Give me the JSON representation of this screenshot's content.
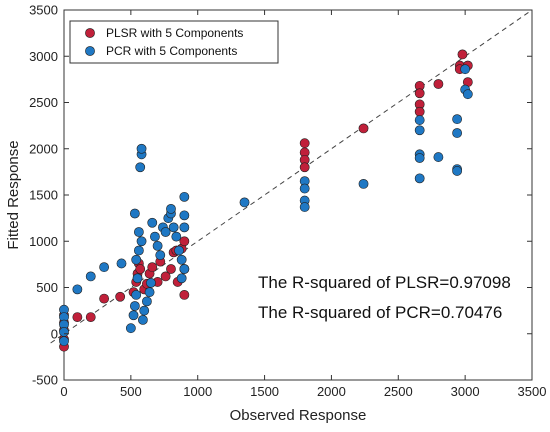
{
  "chart_data": {
    "type": "scatter",
    "xlabel": "Observed Response",
    "ylabel": "Fitted Response",
    "xlim": [
      0,
      3500
    ],
    "ylim": [
      -500,
      3500
    ],
    "xticks": [
      "0",
      "500",
      "1000",
      "1500",
      "2000",
      "2500",
      "3000",
      "3500"
    ],
    "yticks": [
      "-500",
      "0",
      "500",
      "1000",
      "1500",
      "2000",
      "2500",
      "3000",
      "3500"
    ],
    "grid": false,
    "legend_position": "top-left",
    "reference_line": "y = x (dashed)",
    "annotations": [
      "The R-squared of PLSR=0.97098",
      "The R-squared of PCR=0.70476"
    ],
    "series": [
      {
        "name": "PLSR with 5 Components",
        "color": "#c0203a",
        "points": [
          [
            0,
            -140
          ],
          [
            0,
            -60
          ],
          [
            0,
            40
          ],
          [
            0,
            120
          ],
          [
            0,
            200
          ],
          [
            100,
            180
          ],
          [
            200,
            180
          ],
          [
            300,
            380
          ],
          [
            420,
            400
          ],
          [
            520,
            450
          ],
          [
            540,
            560
          ],
          [
            550,
            650
          ],
          [
            560,
            760
          ],
          [
            570,
            700
          ],
          [
            600,
            480
          ],
          [
            620,
            540
          ],
          [
            640,
            650
          ],
          [
            660,
            720
          ],
          [
            700,
            560
          ],
          [
            720,
            780
          ],
          [
            760,
            620
          ],
          [
            800,
            700
          ],
          [
            820,
            880
          ],
          [
            840,
            900
          ],
          [
            880,
            920
          ],
          [
            900,
            1000
          ],
          [
            900,
            420
          ],
          [
            900,
            700
          ],
          [
            850,
            560
          ],
          [
            1800,
            2060
          ],
          [
            1800,
            1960
          ],
          [
            1800,
            1880
          ],
          [
            1800,
            1800
          ],
          [
            2240,
            2220
          ],
          [
            2660,
            2680
          ],
          [
            2660,
            2600
          ],
          [
            2660,
            2480
          ],
          [
            2660,
            2400
          ],
          [
            2800,
            2700
          ],
          [
            2960,
            2900
          ],
          [
            2960,
            2860
          ],
          [
            2980,
            3020
          ],
          [
            3020,
            2720
          ],
          [
            3020,
            2900
          ]
        ]
      },
      {
        "name": "PCR with 5 Components",
        "color": "#1f78c4",
        "points": [
          [
            0,
            260
          ],
          [
            0,
            180
          ],
          [
            0,
            100
          ],
          [
            0,
            20
          ],
          [
            0,
            -80
          ],
          [
            100,
            480
          ],
          [
            200,
            620
          ],
          [
            300,
            720
          ],
          [
            430,
            760
          ],
          [
            500,
            60
          ],
          [
            520,
            200
          ],
          [
            530,
            300
          ],
          [
            540,
            420
          ],
          [
            550,
            600
          ],
          [
            530,
            1300
          ],
          [
            560,
            1100
          ],
          [
            580,
            1000
          ],
          [
            560,
            900
          ],
          [
            540,
            800
          ],
          [
            570,
            1800
          ],
          [
            580,
            1940
          ],
          [
            580,
            2000
          ],
          [
            590,
            150
          ],
          [
            600,
            250
          ],
          [
            620,
            350
          ],
          [
            640,
            450
          ],
          [
            650,
            550
          ],
          [
            660,
            1200
          ],
          [
            680,
            1050
          ],
          [
            700,
            950
          ],
          [
            720,
            850
          ],
          [
            740,
            1150
          ],
          [
            760,
            1100
          ],
          [
            780,
            1250
          ],
          [
            800,
            1300
          ],
          [
            800,
            1350
          ],
          [
            820,
            1150
          ],
          [
            840,
            1050
          ],
          [
            860,
            900
          ],
          [
            880,
            800
          ],
          [
            900,
            1480
          ],
          [
            900,
            1280
          ],
          [
            900,
            1150
          ],
          [
            900,
            700
          ],
          [
            880,
            600
          ],
          [
            1350,
            1420
          ],
          [
            1800,
            1650
          ],
          [
            1800,
            1570
          ],
          [
            1800,
            1440
          ],
          [
            1800,
            1370
          ],
          [
            2240,
            1620
          ],
          [
            2660,
            2310
          ],
          [
            2660,
            2200
          ],
          [
            2660,
            1940
          ],
          [
            2660,
            1900
          ],
          [
            2660,
            1680
          ],
          [
            2800,
            1910
          ],
          [
            2940,
            2320
          ],
          [
            2940,
            2170
          ],
          [
            2940,
            1780
          ],
          [
            2940,
            1760
          ],
          [
            3000,
            2640
          ],
          [
            3020,
            2590
          ],
          [
            3000,
            2860
          ]
        ]
      }
    ]
  }
}
